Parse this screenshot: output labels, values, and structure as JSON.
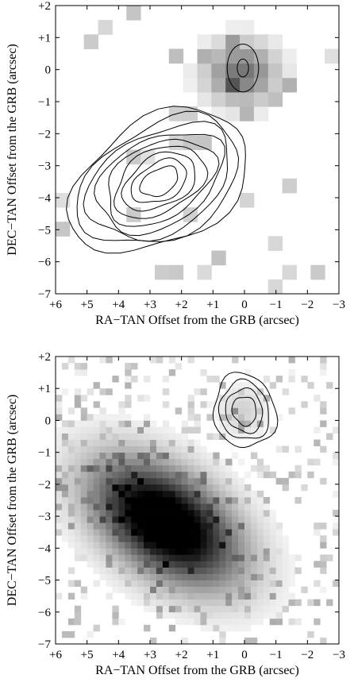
{
  "chart_data": [
    {
      "type": "heatmap",
      "xlabel": "RA−TAN Offset from the GRB (arcsec)",
      "ylabel": "DEC−TAN Offset from the GRB (arcsec)",
      "xlim": [
        6,
        -3
      ],
      "ylim": [
        -7,
        2
      ],
      "x_ticks": [
        "+6",
        "+5",
        "+4",
        "+3",
        "+2",
        "+1",
        "0",
        "−1",
        "−2",
        "−3"
      ],
      "y_ticks": [
        "+2",
        "+1",
        "0",
        "−1",
        "−2",
        "−3",
        "−4",
        "−5",
        "−6",
        "−7"
      ],
      "colormap": "grayscale",
      "sources": [
        {
          "x": 0.0,
          "y": 0.0,
          "peak": 0.55
        },
        {
          "x": 2.7,
          "y": -3.5,
          "peak": 0.0
        }
      ],
      "contours": {
        "center": [
          2.7,
          -3.5
        ],
        "levels": 9
      }
    },
    {
      "type": "heatmap",
      "xlabel": "RA−TAN Offset from the GRB (arcsec)",
      "ylabel": "DEC−TAN Offset from the GRB (arcsec)",
      "xlim": [
        6,
        -3
      ],
      "ylim": [
        -7,
        2
      ],
      "x_ticks": [
        "+6",
        "+5",
        "+4",
        "+3",
        "+2",
        "+1",
        "0",
        "−1",
        "−2",
        "−3"
      ],
      "y_ticks": [
        "+2",
        "+1",
        "0",
        "−1",
        "−2",
        "−3",
        "−4",
        "−5",
        "−6",
        "−7"
      ],
      "colormap": "grayscale",
      "sources": [
        {
          "x": 2.5,
          "y": -3.2,
          "peak": 1.0
        }
      ],
      "contours": {
        "center": [
          0.0,
          0.3
        ],
        "levels": 4
      }
    }
  ]
}
